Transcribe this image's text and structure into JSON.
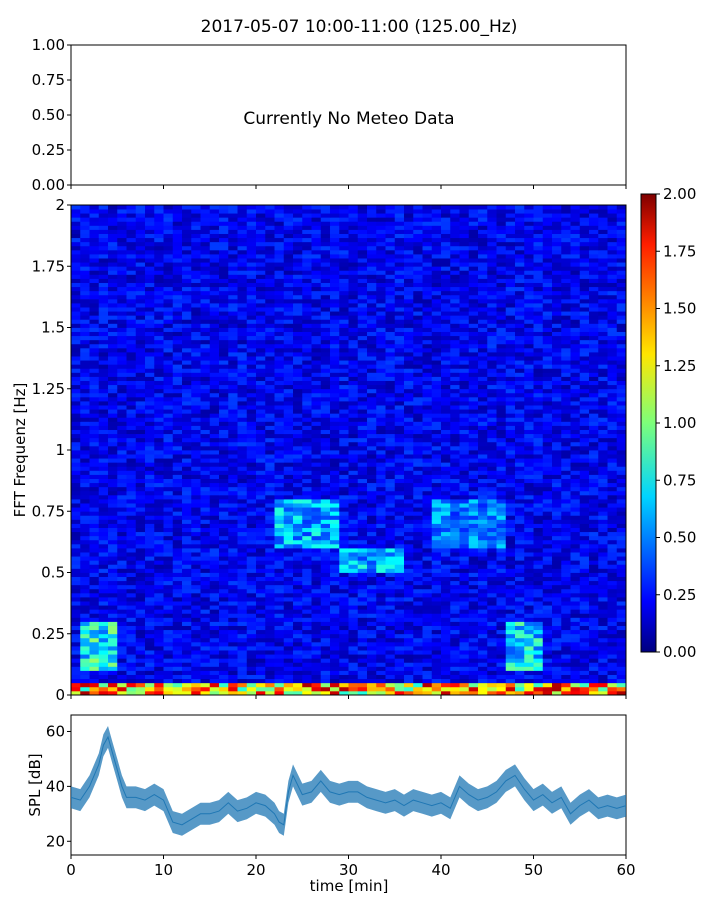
{
  "title": "2017-05-07 10:00-11:00 (125.00_Hz)",
  "chart_data": [
    {
      "name": "meteo",
      "type": "line",
      "message": "Currently No Meteo Data",
      "ylim": [
        0,
        1
      ],
      "yticks": [
        "0.00",
        "0.25",
        "0.50",
        "0.75",
        "1.00"
      ],
      "xlim": [
        0,
        60
      ],
      "grid": false
    },
    {
      "name": "spectrogram",
      "type": "heatmap",
      "ylabel": "FFT Frequenz [Hz]",
      "xlim": [
        0,
        60
      ],
      "ylim": [
        0,
        2
      ],
      "yticks": [
        "0",
        "0.25",
        "0.5",
        "0.75",
        "1",
        "1.25",
        "1.5",
        "1.75",
        "2"
      ],
      "colormap": "jet",
      "clim": [
        0,
        2
      ],
      "colorbar_ticks": [
        "0.00",
        "0.25",
        "0.50",
        "0.75",
        "1.00",
        "1.25",
        "1.50",
        "1.75",
        "2.00"
      ],
      "approx_mean_level": 0.25,
      "features": [
        {
          "desc": "strong low-frequency band",
          "freq_range": [
            0,
            0.05
          ],
          "level": 1.6
        },
        {
          "desc": "elevated energy",
          "time_range": [
            1,
            5
          ],
          "freq_range": [
            0.1,
            0.3
          ],
          "level": 0.9
        },
        {
          "desc": "elevated energy",
          "time_range": [
            47,
            51
          ],
          "freq_range": [
            0.1,
            0.3
          ],
          "level": 0.8
        },
        {
          "desc": "band",
          "time_range": [
            22,
            29
          ],
          "freq_range": [
            0.6,
            0.8
          ],
          "level": 0.7
        },
        {
          "desc": "band",
          "time_range": [
            29,
            36
          ],
          "freq_range": [
            0.5,
            0.6
          ],
          "level": 0.7
        },
        {
          "desc": "band",
          "time_range": [
            39,
            47
          ],
          "freq_range": [
            0.6,
            0.8
          ],
          "level": 0.6
        }
      ]
    },
    {
      "name": "spl",
      "type": "line",
      "ylabel": "SPL [dB]",
      "xlabel": "time [min]",
      "xlim": [
        0,
        60
      ],
      "ylim": [
        15,
        66
      ],
      "yticks": [
        "20",
        "40",
        "60"
      ],
      "xticks": [
        "0",
        "10",
        "20",
        "30",
        "40",
        "50",
        "60"
      ],
      "color": "#1f77b4",
      "series": [
        {
          "x": [
            0,
            1,
            2,
            3,
            3.5,
            4,
            4.5,
            5,
            5.5,
            6,
            7,
            8,
            9,
            10,
            11,
            12,
            13,
            14,
            15,
            16,
            17,
            18,
            19,
            20,
            21,
            22,
            22.5,
            23,
            23.5,
            24,
            25,
            26,
            27,
            28,
            29,
            30,
            31,
            32,
            33,
            34,
            35,
            36,
            37,
            38,
            39,
            40,
            41,
            42,
            43,
            44,
            45,
            46,
            47,
            48,
            49,
            50,
            51,
            52,
            53,
            54,
            55,
            56,
            57,
            58,
            59,
            60
          ],
          "values": [
            36,
            35,
            40,
            48,
            55,
            58,
            52,
            46,
            40,
            36,
            36,
            35,
            37,
            35,
            27,
            26,
            28,
            30,
            30,
            31,
            34,
            31,
            32,
            34,
            33,
            30,
            27,
            26,
            38,
            44,
            37,
            38,
            42,
            38,
            37,
            38,
            38,
            36,
            35,
            34,
            35,
            33,
            35,
            34,
            33,
            34,
            32,
            40,
            37,
            35,
            36,
            38,
            42,
            44,
            39,
            35,
            37,
            34,
            36,
            30,
            33,
            35,
            32,
            33,
            32,
            33
          ]
        }
      ]
    }
  ]
}
